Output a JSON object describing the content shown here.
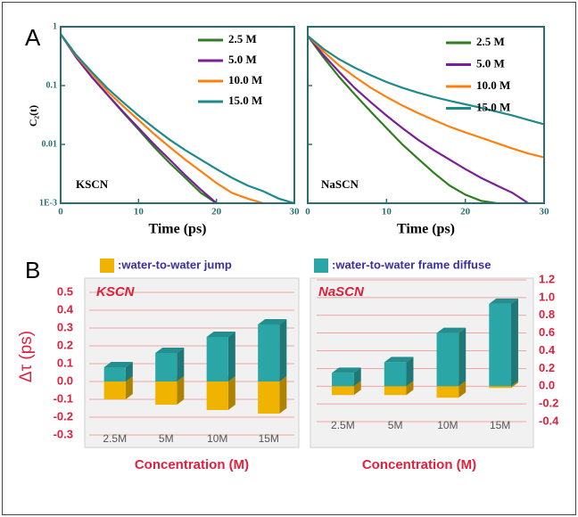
{
  "panel_labels": [
    "A",
    "B"
  ],
  "chart_data": [
    {
      "type": "line",
      "x_label": "Time (ps)",
      "y_label": "C₂(t)",
      "annotation": "KSCN",
      "x": [
        0,
        2,
        4,
        6,
        8,
        10,
        12,
        14,
        16,
        18,
        20,
        22,
        24,
        26,
        28,
        30
      ],
      "xlim": [
        0,
        30
      ],
      "xticks": [
        0,
        10,
        20,
        30
      ],
      "ylim": [
        0.001,
        1
      ],
      "yticks": [
        1,
        0.1,
        0.01,
        {
          "value": 0.001,
          "label": "1E-3"
        }
      ],
      "log_y": true,
      "legend": "upper right",
      "series": [
        {
          "name": "2.5 M",
          "color": "#2e7d1e",
          "values": [
            0.75,
            0.3,
            0.14,
            0.07,
            0.035,
            0.018,
            0.009,
            0.0048,
            0.0027,
            0.0015,
            0.001,
            null,
            null,
            null,
            null,
            null
          ]
        },
        {
          "name": "5.0 M",
          "color": "#7a1e9a",
          "values": [
            0.75,
            0.3,
            0.14,
            0.07,
            0.036,
            0.019,
            0.01,
            0.0055,
            0.003,
            0.0017,
            0.001,
            null,
            null,
            null,
            null,
            null
          ]
        },
        {
          "name": "10.0 M",
          "color": "#ff7f0e",
          "values": [
            0.75,
            0.32,
            0.16,
            0.08,
            0.045,
            0.026,
            0.015,
            0.009,
            0.0055,
            0.0035,
            0.0022,
            0.0015,
            0.0012,
            0.001,
            null,
            null
          ]
        },
        {
          "name": "15.0 M",
          "color": "#1f8a8a",
          "values": [
            0.75,
            0.33,
            0.17,
            0.09,
            0.052,
            0.031,
            0.019,
            0.012,
            0.008,
            0.0055,
            0.0038,
            0.0027,
            0.002,
            0.0016,
            0.0012,
            0.001
          ]
        }
      ]
    },
    {
      "type": "line",
      "x_label": "Time (ps)",
      "annotation": "NaSCN",
      "x": [
        0,
        2,
        4,
        6,
        8,
        10,
        12,
        14,
        16,
        18,
        20,
        22,
        24,
        26,
        28,
        30
      ],
      "xlim": [
        0,
        30
      ],
      "xticks": [
        0,
        10,
        20,
        30
      ],
      "ylim": [
        0.001,
        1
      ],
      "yticks": [
        1,
        0.1,
        0.01,
        0.001
      ],
      "log_y": true,
      "legend": "upper right",
      "series": [
        {
          "name": "2.5 M",
          "color": "#2e7d1e",
          "values": [
            0.7,
            0.3,
            0.14,
            0.07,
            0.036,
            0.019,
            0.01,
            0.0057,
            0.0033,
            0.002,
            0.0014,
            0.0011,
            0.001,
            null,
            null,
            null
          ]
        },
        {
          "name": "5.0 M",
          "color": "#7a1e9a",
          "values": [
            0.7,
            0.33,
            0.17,
            0.09,
            0.052,
            0.031,
            0.019,
            0.012,
            0.008,
            0.0055,
            0.0038,
            0.0027,
            0.002,
            0.0015,
            0.001,
            null
          ]
        },
        {
          "name": "10.0 M",
          "color": "#ff7f0e",
          "values": [
            0.7,
            0.38,
            0.22,
            0.14,
            0.092,
            0.064,
            0.046,
            0.034,
            0.026,
            0.02,
            0.016,
            0.013,
            0.0105,
            0.0085,
            0.007,
            0.006
          ]
        },
        {
          "name": "15.0 M",
          "color": "#1f8a8a",
          "values": [
            0.7,
            0.42,
            0.28,
            0.2,
            0.15,
            0.115,
            0.092,
            0.076,
            0.064,
            0.055,
            0.048,
            0.042,
            0.036,
            0.031,
            0.026,
            0.022
          ]
        }
      ]
    },
    {
      "type": "bar3d",
      "title": "KSCN",
      "x_label": "Concentration (M)",
      "y_label": "Δτ (ps)",
      "categories": [
        "2.5M",
        "5M",
        "10M",
        "15M"
      ],
      "yaxis_position": "left",
      "grid": true,
      "ylim": [
        -0.3,
        0.5
      ],
      "yticks": [
        0.5,
        0.4,
        0.3,
        0.2,
        0.1,
        {
          "value": 0,
          "label": "0.0"
        },
        -0.1,
        -0.2,
        -0.3
      ],
      "series": [
        {
          "name": ":water-to-water jump",
          "color": "#f0b400",
          "values": [
            -0.1,
            -0.13,
            -0.16,
            -0.18
          ]
        },
        {
          "name": ":water-to-water frame diffuse",
          "color": "#2aa6a6",
          "values": [
            0.08,
            0.16,
            0.25,
            0.32
          ]
        }
      ]
    },
    {
      "type": "bar3d",
      "title": "NaSCN",
      "x_label": "Concentration (M)",
      "categories": [
        "2.5M",
        "5M",
        "10M",
        "15M"
      ],
      "yaxis_position": "right",
      "grid": true,
      "ylim": [
        -0.4,
        1.2
      ],
      "yticks": [
        1.2,
        {
          "value": 1,
          "label": "1.0"
        },
        0.8,
        0.6,
        0.4,
        0.2,
        {
          "value": 0,
          "label": "0.0"
        },
        -0.2,
        -0.4
      ],
      "series": [
        {
          "color": "#f0b400",
          "values": [
            -0.1,
            -0.1,
            -0.13,
            -0.02
          ]
        },
        {
          "color": "#2aa6a6",
          "values": [
            0.15,
            0.27,
            0.6,
            0.93
          ]
        }
      ]
    }
  ]
}
